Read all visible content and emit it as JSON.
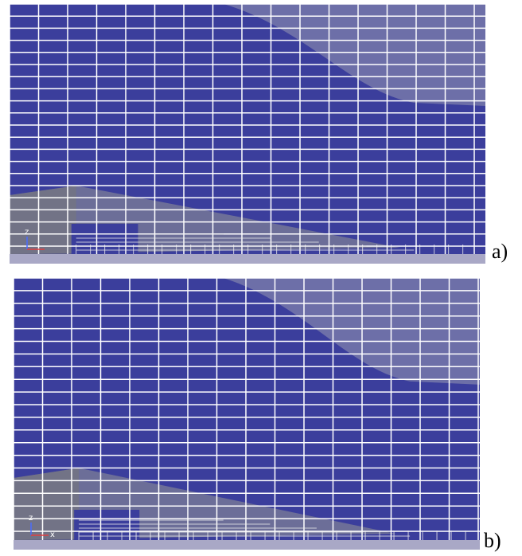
{
  "panels": [
    {
      "label": "a)",
      "axes": [
        "z"
      ]
    },
    {
      "label": "b)",
      "axes": [
        "z",
        "x"
      ]
    }
  ]
}
